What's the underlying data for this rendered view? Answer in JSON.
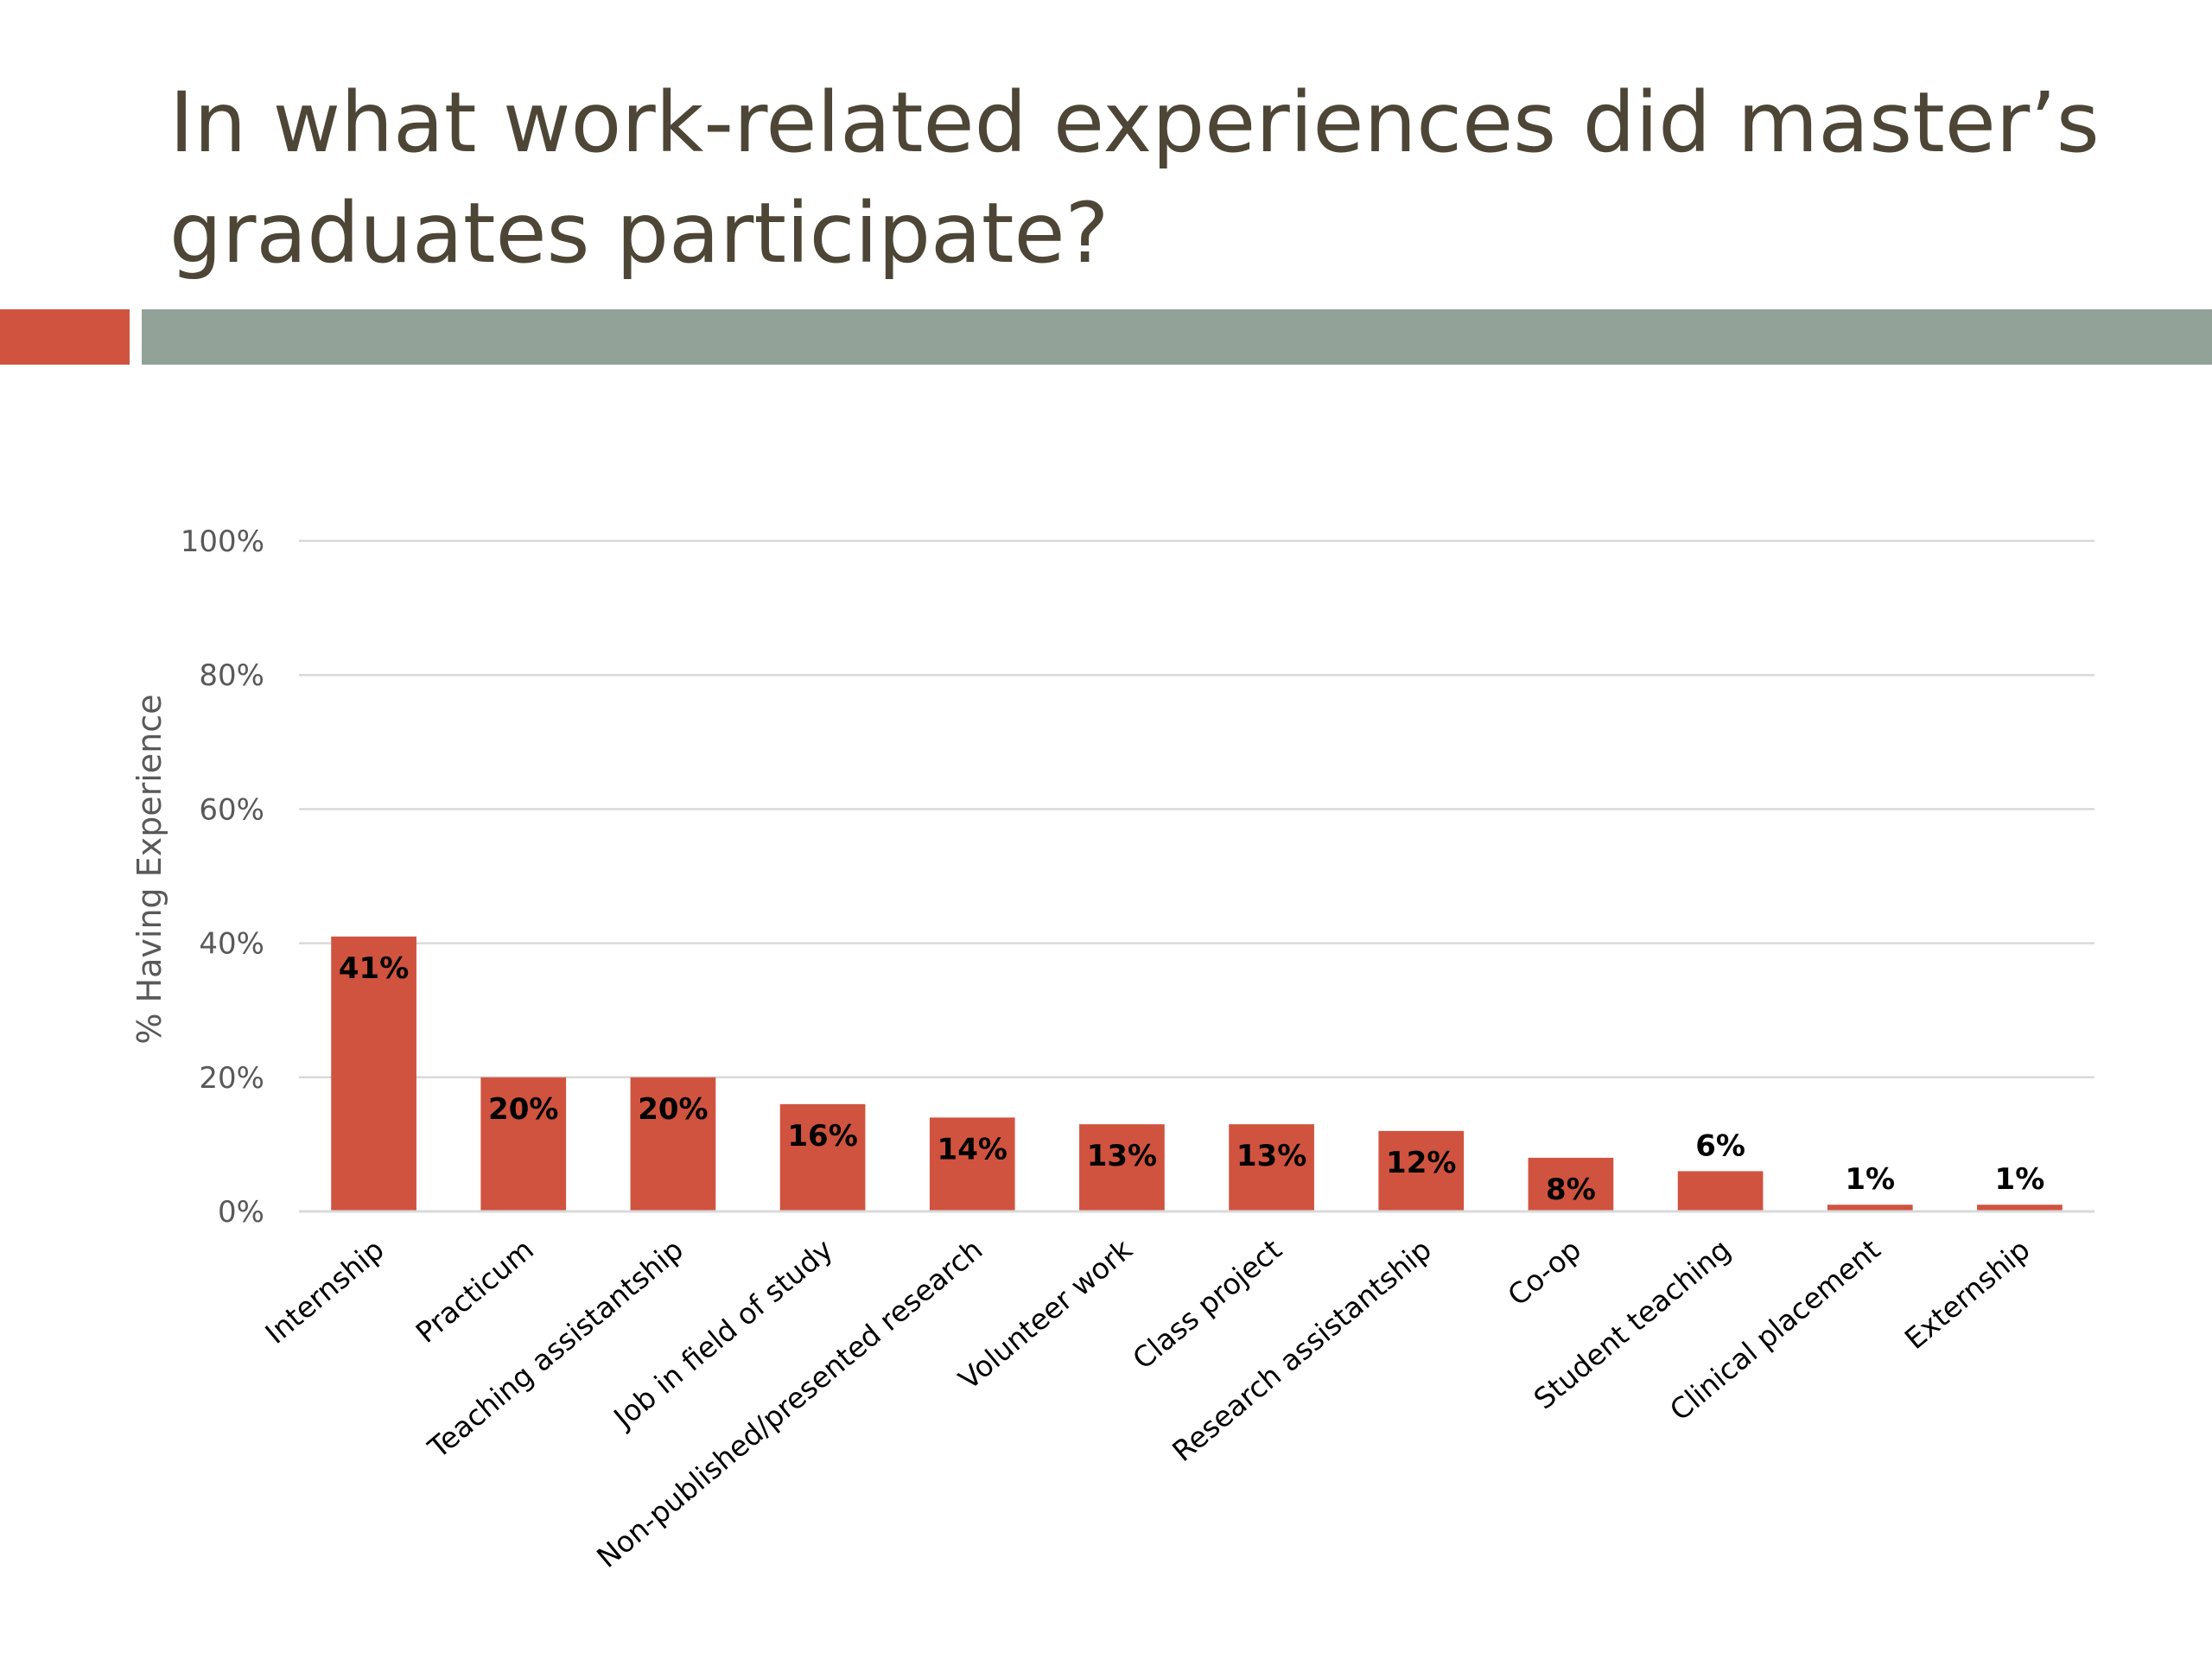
{
  "slide": {
    "title": "In what work-related experiences did master’s graduates participate?",
    "accent_color": "#d05340",
    "divider_color": "#93a299"
  },
  "chart_data": {
    "type": "bar",
    "title": "",
    "xlabel": "",
    "ylabel": "% Having Experience",
    "ylim": [
      0,
      100
    ],
    "yticks": [
      0,
      20,
      40,
      60,
      80,
      100
    ],
    "ytick_labels": [
      "0%",
      "20%",
      "40%",
      "60%",
      "80%",
      "100%"
    ],
    "grid": true,
    "legend": "none",
    "bar_color": "#d05340",
    "categories": [
      "Internship",
      "Practicum",
      "Teaching assistantship",
      "Job in field of study",
      "Non-published/presented research",
      "Volunteer work",
      "Class project",
      "Research assistantship",
      "Co-op",
      "Student teaching",
      "Clinical placement",
      "Externship"
    ],
    "values": [
      41,
      20,
      20,
      16,
      14,
      13,
      13,
      12,
      8,
      6,
      1,
      1
    ],
    "data_labels": [
      "41%",
      "20%",
      "20%",
      "16%",
      "14%",
      "13%",
      "13%",
      "12%",
      "8%",
      "6%",
      "1%",
      "1%"
    ]
  }
}
